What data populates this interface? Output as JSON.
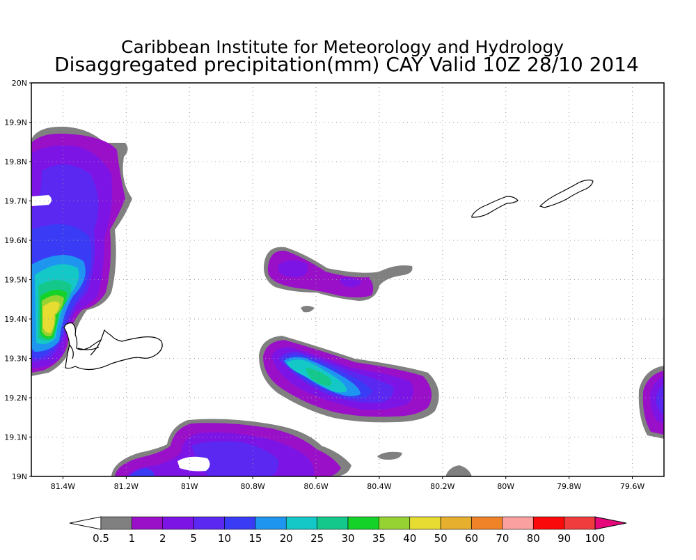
{
  "header": {
    "institute": "Caribbean Institute for Meteorology and Hydrology",
    "title": "Disaggregated precipitation(mm) CAY Valid 10Z 28/10 2014"
  },
  "map": {
    "lat_range": [
      19.0,
      20.0
    ],
    "lon_range": [
      -81.5,
      -79.5
    ],
    "lat_labels": [
      "19N",
      "19.1N",
      "19.2N",
      "19.3N",
      "19.4N",
      "19.5N",
      "19.6N",
      "19.7N",
      "19.8N",
      "19.9N",
      "20N"
    ],
    "lon_labels": [
      "81.4W",
      "81.2W",
      "81W",
      "80.8W",
      "80.6W",
      "80.4W",
      "80.2W",
      "80W",
      "79.8W",
      "79.6W"
    ],
    "grid": "dotted"
  },
  "colorbar": {
    "labels": [
      "0.5",
      "1",
      "2",
      "5",
      "10",
      "15",
      "20",
      "25",
      "30",
      "35",
      "40",
      "50",
      "60",
      "70",
      "80",
      "90",
      "100"
    ],
    "colors": [
      "#ffffff",
      "#808080",
      "#9a10c8",
      "#7d14e6",
      "#5a28f0",
      "#3a3cf5",
      "#1e96f0",
      "#14c8c8",
      "#14c88c",
      "#14d228",
      "#96d232",
      "#e6dc32",
      "#e6af2d",
      "#f08228",
      "#fba0a0",
      "#fa0a0a",
      "#f03c3c",
      "#e6087a"
    ]
  },
  "outlines": [
    "grand-cayman",
    "little-cayman",
    "cayman-brac"
  ]
}
